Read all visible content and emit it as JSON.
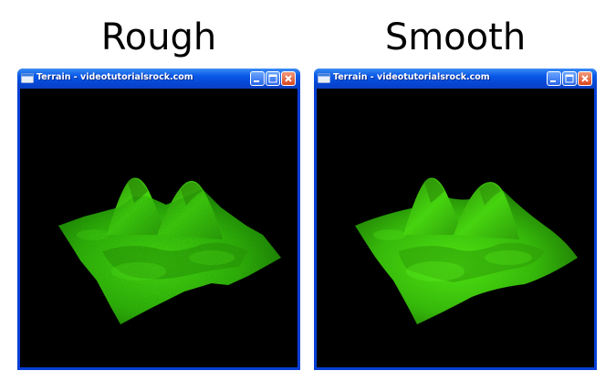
{
  "panels": [
    {
      "heading": "Rough",
      "window": {
        "title": "Terrain - videotutorialsrock.com",
        "controls": {
          "minimize": "minimize-icon",
          "maximize": "maximize-icon",
          "close": "close-icon"
        },
        "content": "rough-terrain-render"
      }
    },
    {
      "heading": "Smooth",
      "window": {
        "title": "Terrain - videotutorialsrock.com",
        "controls": {
          "minimize": "minimize-icon",
          "maximize": "maximize-icon",
          "close": "close-icon"
        },
        "content": "smooth-terrain-render"
      }
    }
  ],
  "colors": {
    "titlebar": "#0a5ae8",
    "window_frame": "#0a3fd6",
    "terrain": "#3fd10a",
    "background": "#000000"
  }
}
